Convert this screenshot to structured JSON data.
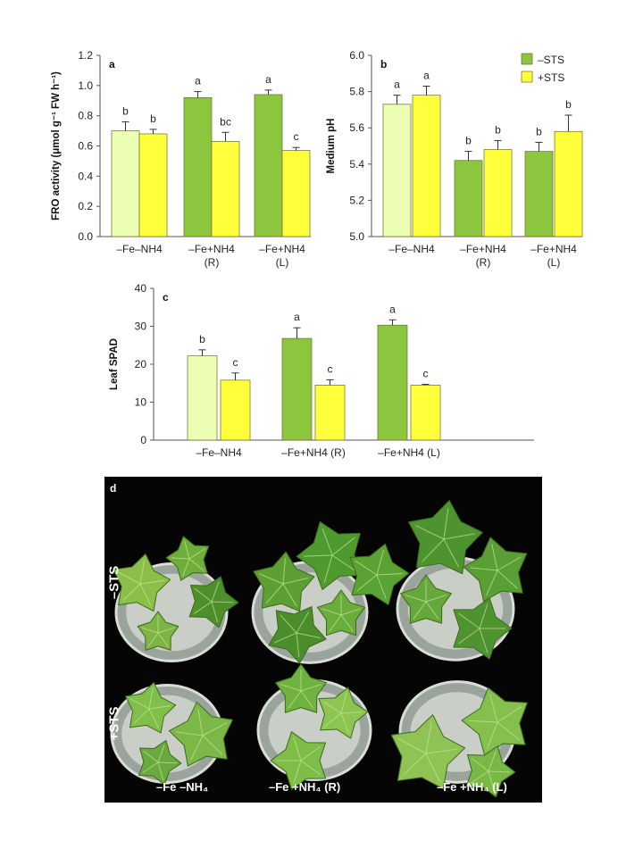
{
  "colors": {
    "minus_sts_light": "#ebfcb3",
    "minus_sts": "#8cc63f",
    "plus_sts": "#ffff3c",
    "bar_stroke": "#6b6b2a",
    "photo_bg": "#050505"
  },
  "legend": [
    {
      "label": "–STS",
      "color": "#8cc63f"
    },
    {
      "label": "+STS",
      "color": "#ffff3c"
    }
  ],
  "chart_data": [
    {
      "panel": "a",
      "type": "bar",
      "ylabel": "FRO activity (μmol g⁻¹ FW h⁻¹)",
      "ylim": [
        0,
        1.2
      ],
      "yticks": [
        "0.0",
        "0.2",
        "0.4",
        "0.6",
        "0.8",
        "1.0",
        "1.2"
      ],
      "categories": [
        [
          "–Fe–NH4"
        ],
        [
          "–Fe+NH4",
          "(R)"
        ],
        [
          "–Fe+NH4",
          "(L)"
        ]
      ],
      "series": [
        {
          "name": "–STS",
          "values": [
            0.7,
            0.92,
            0.94
          ],
          "errors": [
            0.06,
            0.04,
            0.03
          ],
          "letters": [
            "b",
            "a",
            "a"
          ]
        },
        {
          "name": "+STS",
          "values": [
            0.68,
            0.63,
            0.57
          ],
          "errors": [
            0.03,
            0.06,
            0.02
          ],
          "letters": [
            "b",
            "bc",
            "c"
          ]
        }
      ]
    },
    {
      "panel": "b",
      "type": "bar",
      "ylabel": "Medium pH",
      "ylim": [
        5.0,
        6.0
      ],
      "yticks": [
        "5.0",
        "5.2",
        "5.4",
        "5.6",
        "5.8",
        "6.0"
      ],
      "categories": [
        [
          "–Fe–NH4"
        ],
        [
          "–Fe+NH4",
          "(R)"
        ],
        [
          "–Fe+NH4",
          "(L)"
        ]
      ],
      "series": [
        {
          "name": "–STS",
          "values": [
            5.73,
            5.42,
            5.47
          ],
          "errors": [
            0.05,
            0.05,
            0.05
          ],
          "letters": [
            "a",
            "b",
            "b"
          ]
        },
        {
          "name": "+STS",
          "values": [
            5.78,
            5.48,
            5.58
          ],
          "errors": [
            0.05,
            0.05,
            0.09
          ],
          "letters": [
            "a",
            "b",
            "b"
          ]
        }
      ]
    },
    {
      "panel": "c",
      "type": "bar",
      "ylabel": "Leaf SPAD",
      "ylim": [
        0,
        40
      ],
      "yticks": [
        "0",
        "10",
        "20",
        "30",
        "40"
      ],
      "categories": [
        [
          "–Fe–NH4"
        ],
        [
          "–Fe+NH4 (R)"
        ],
        [
          "–Fe+NH4 (L)"
        ]
      ],
      "series": [
        {
          "name": "–STS",
          "values": [
            22.2,
            26.8,
            30.3
          ],
          "errors": [
            1.6,
            2.8,
            1.4
          ],
          "letters": [
            "b",
            "a",
            "a"
          ]
        },
        {
          "name": "+STS",
          "values": [
            15.8,
            14.5,
            14.5
          ],
          "errors": [
            1.9,
            1.4,
            0.2
          ],
          "letters": [
            "c",
            "c",
            "c"
          ]
        }
      ]
    }
  ],
  "photo": {
    "letter": "d",
    "row_labels": [
      "–STS",
      "+STS"
    ],
    "conditions": [
      "–Fe –NH₄",
      "–Fe +NH₄ (R)",
      "–Fe +NH₄ (L)"
    ]
  }
}
